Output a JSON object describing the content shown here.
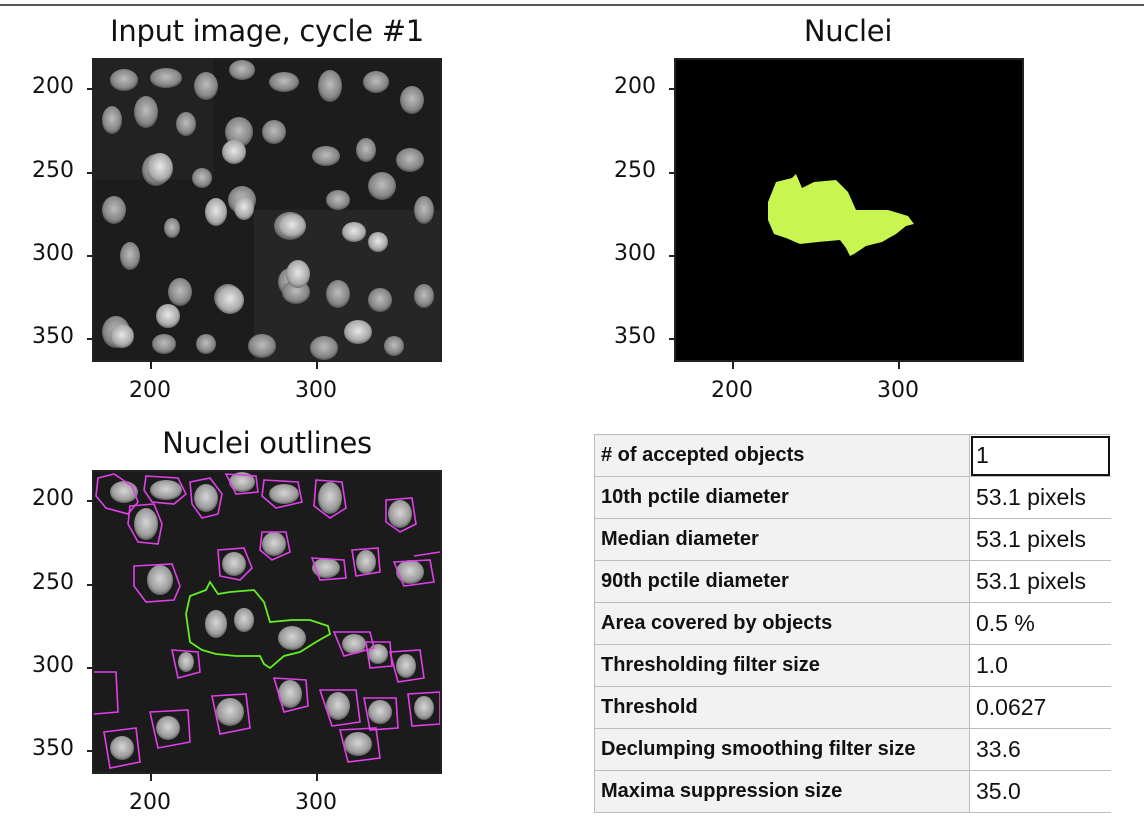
{
  "panels": {
    "input": {
      "title": "Input image, cycle #1",
      "yticks": [
        "200",
        "250",
        "300",
        "350"
      ],
      "xticks": [
        "200",
        "300"
      ]
    },
    "nuclei": {
      "title": "Nuclei",
      "yticks": [
        "200",
        "250",
        "300",
        "350"
      ],
      "xticks": [
        "200",
        "300"
      ],
      "object_color": "#c8f54f"
    },
    "outlines": {
      "title": "Nuclei outlines",
      "yticks": [
        "200",
        "250",
        "300",
        "350"
      ],
      "xticks": [
        "200",
        "300"
      ],
      "outline_color": "#e040e8",
      "accepted_color": "#66ee22"
    }
  },
  "measurements": {
    "rows": [
      {
        "label": "# of accepted objects",
        "value": "1"
      },
      {
        "label": "10th pctile diameter",
        "value": "53.1 pixels"
      },
      {
        "label": "Median diameter",
        "value": "53.1 pixels"
      },
      {
        "label": "90th pctile diameter",
        "value": "53.1 pixels"
      },
      {
        "label": "Area covered by objects",
        "value": "0.5 %"
      },
      {
        "label": "Thresholding filter size",
        "value": "1.0"
      },
      {
        "label": "Threshold",
        "value": "0.0627"
      },
      {
        "label": "Declumping smoothing filter size",
        "value": "33.6"
      },
      {
        "label": "Maxima suppression size",
        "value": "35.0"
      }
    ]
  }
}
